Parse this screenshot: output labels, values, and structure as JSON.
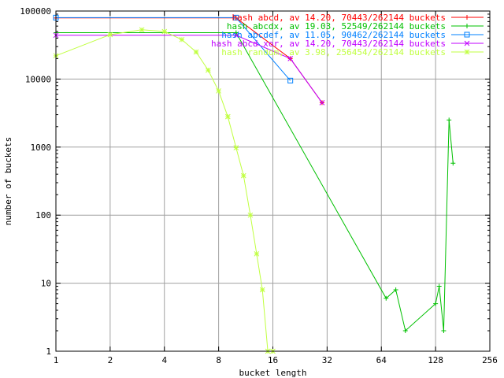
{
  "chart_data": {
    "type": "line",
    "xlabel": "bucket length",
    "ylabel": "number of buckets",
    "x_scale": "log2",
    "y_scale": "log10",
    "xlim": [
      1,
      256
    ],
    "ylim": [
      1,
      100000
    ],
    "x_ticks": [
      1,
      2,
      4,
      8,
      16,
      32,
      64,
      128,
      256
    ],
    "x_tick_labels": [
      "1",
      "2",
      "4",
      "8",
      "16",
      "32",
      "64",
      "128",
      "256"
    ],
    "y_ticks": [
      1,
      10,
      100,
      1000,
      10000,
      100000
    ],
    "y_tick_labels": [
      "1",
      "10",
      "100",
      "1000",
      "10000",
      "100000"
    ],
    "grid": true,
    "legend_position": "top-right",
    "series": [
      {
        "name": "hash abcd, av 14.20, 70443/262144 buckets",
        "color": "#ff0000",
        "marker": "plus",
        "points": [
          [
            1,
            79000
          ],
          [
            10,
            79000
          ],
          [
            20,
            20000
          ],
          [
            30,
            4500
          ]
        ]
      },
      {
        "name": "hash abcdx, av 19.03, 52549/262144 buckets",
        "color": "#00c000",
        "marker": "plus",
        "points": [
          [
            1,
            48000
          ],
          [
            10,
            48000
          ],
          [
            68,
            6
          ],
          [
            77,
            8
          ],
          [
            87,
            2
          ],
          [
            128,
            5
          ],
          [
            134,
            9
          ],
          [
            142,
            2
          ],
          [
            152,
            2500
          ],
          [
            160,
            580
          ]
        ]
      },
      {
        "name": "hash abcdef, av 11.05, 90462/262144 buckets",
        "color": "#0080ff",
        "marker": "square",
        "points": [
          [
            1,
            80000
          ],
          [
            10,
            80000
          ],
          [
            20,
            9500
          ]
        ]
      },
      {
        "name": "hash abcd xor, av 14.20, 70443/262144 buckets",
        "color": "#c000ff",
        "marker": "x",
        "points": [
          [
            1,
            44000
          ],
          [
            10,
            44000
          ],
          [
            20,
            20000
          ],
          [
            30,
            4500
          ]
        ]
      },
      {
        "name": "hash random, av 3.98, 256454/262144 buckets",
        "color": "#c0ff40",
        "marker": "star",
        "points": [
          [
            1,
            22000
          ],
          [
            2,
            45000
          ],
          [
            3,
            53000
          ],
          [
            4,
            50000
          ],
          [
            5,
            38000
          ],
          [
            6,
            25000
          ],
          [
            7,
            13500
          ],
          [
            8,
            6700
          ],
          [
            9,
            2800
          ],
          [
            10,
            980
          ],
          [
            11,
            380
          ],
          [
            12,
            100
          ],
          [
            13,
            27
          ],
          [
            14,
            8
          ],
          [
            15,
            1
          ],
          [
            16,
            1
          ]
        ]
      }
    ]
  }
}
